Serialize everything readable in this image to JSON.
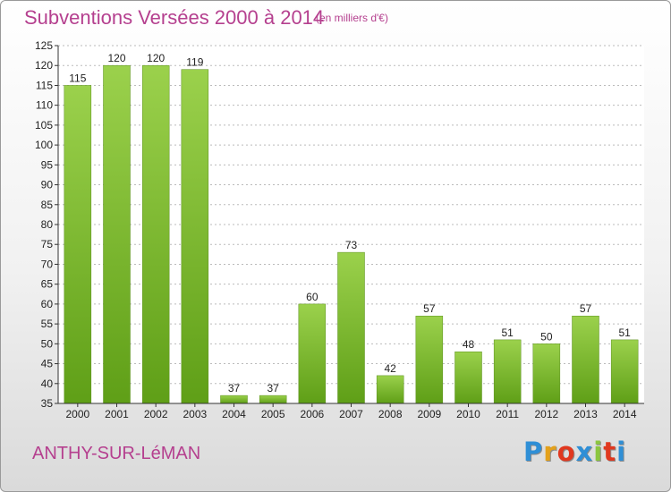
{
  "header": {
    "title": "Subventions Versées 2000 à 2014",
    "subtitle": "(en milliers d'€)"
  },
  "footer": {
    "commune": "ANTHY-SUR-LéMAN",
    "logo": {
      "letters": [
        "P",
        "r",
        "o",
        "x",
        "i",
        "t",
        "i"
      ],
      "colors": [
        "#2f8fd6",
        "#e4a11b",
        "#e0381f",
        "#2f8fd6",
        "#8cc63f",
        "#e0381f",
        "#2f8fd6"
      ]
    }
  },
  "colors": {
    "bar_top": "#9bd14c",
    "bar_bottom": "#5f9f17",
    "grid": "#bbbbbb",
    "axis": "#333333",
    "text": "#222222",
    "title": "#b5408f"
  },
  "chart_data": {
    "type": "bar",
    "title": "Subventions Versées 2000 à 2014",
    "subtitle": "(en milliers d'€)",
    "xlabel": "",
    "ylabel": "",
    "categories": [
      "2000",
      "2001",
      "2002",
      "2003",
      "2004",
      "2005",
      "2006",
      "2007",
      "2008",
      "2009",
      "2010",
      "2011",
      "2012",
      "2013",
      "2014"
    ],
    "values": [
      115,
      120,
      120,
      119,
      37,
      37,
      60,
      73,
      42,
      57,
      48,
      51,
      50,
      57,
      51
    ],
    "ylim": [
      35,
      125
    ],
    "ytick_step": 5,
    "grid": true,
    "data_labels": true
  }
}
